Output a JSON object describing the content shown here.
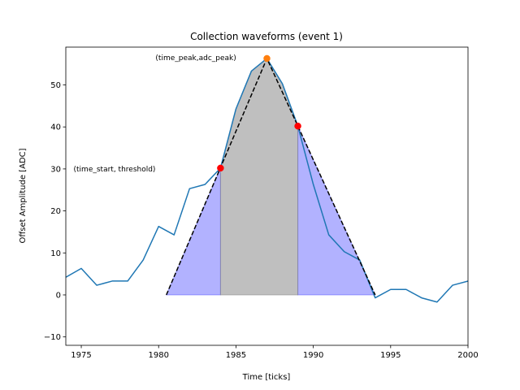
{
  "chart_data": {
    "type": "line",
    "title": "Collection waveforms (event 1)",
    "xlabel": "Time [ticks]",
    "ylabel": "Offset Amplitude [ADC]",
    "xlim": [
      1974,
      2000
    ],
    "ylim": [
      -12,
      59
    ],
    "xticks": [
      1975,
      1980,
      1985,
      1990,
      1995,
      2000
    ],
    "yticks": [
      -10,
      0,
      10,
      20,
      30,
      40,
      50
    ],
    "grid": false,
    "waveform": {
      "color": "#1f77b4",
      "x": [
        1974,
        1975,
        1976,
        1977,
        1978,
        1979,
        1980,
        1981,
        1982,
        1983,
        1984,
        1985,
        1986,
        1987,
        1988,
        1989,
        1990,
        1991,
        1992,
        1993,
        1994,
        1995,
        1996,
        1997,
        1998,
        1999,
        2000
      ],
      "y": [
        4.2,
        6.3,
        2.3,
        3.3,
        3.3,
        8.3,
        16.3,
        14.3,
        25.3,
        26.3,
        30.2,
        44.3,
        53.3,
        56.3,
        50.3,
        40.2,
        26.3,
        14.3,
        10.3,
        8.3,
        -0.7,
        1.3,
        1.3,
        -0.7,
        -1.7,
        2.3,
        3.3
      ]
    },
    "triangle": {
      "color": "#000000",
      "x": [
        1980.5,
        1987,
        1994
      ],
      "y": [
        0,
        56.3,
        0
      ]
    },
    "fill_blue": {
      "color": "#0000ff",
      "opacity": 0.3,
      "left": {
        "x": [
          1980.5,
          1984
        ],
        "y": [
          0,
          30.2
        ]
      },
      "right": {
        "x": [
          1989,
          1994
        ],
        "y": [
          40.2,
          0
        ]
      }
    },
    "fill_gray": {
      "color": "#808080",
      "opacity": 0.5,
      "x": [
        1984,
        1985,
        1986,
        1987,
        1988,
        1989
      ],
      "y": [
        30.2,
        44.3,
        53.3,
        56.3,
        50.3,
        40.2
      ]
    },
    "markers": [
      {
        "x": 1984,
        "y": 30.2,
        "color": "#ff0000"
      },
      {
        "x": 1989,
        "y": 40.2,
        "color": "#ff0000"
      },
      {
        "x": 1987,
        "y": 56.3,
        "color": "#ff7f0e"
      }
    ],
    "annotations": [
      {
        "text": "(time_start, threshold)",
        "x": 1974.5,
        "y": 30
      },
      {
        "text": "(time_peak,adc_peak)",
        "x": 1979.8,
        "y": 56.5
      }
    ]
  }
}
